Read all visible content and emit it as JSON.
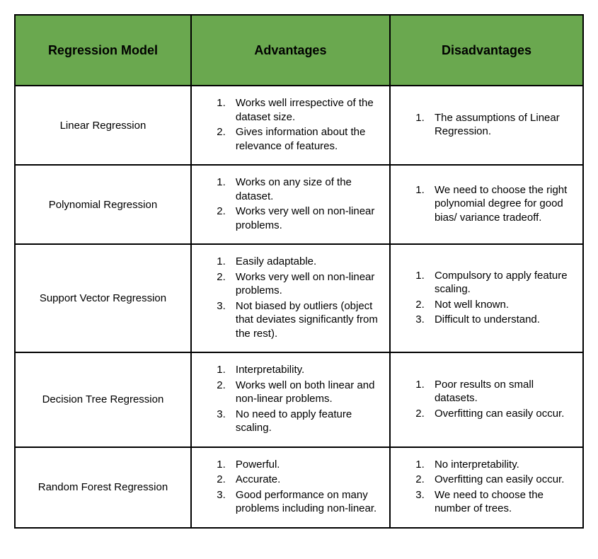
{
  "table": {
    "type": "table",
    "header_background": "#6aa84f",
    "header_text_color": "#000000",
    "border_color": "#000000",
    "border_width": 2,
    "font_family": "Arial",
    "header_fontsize": 18,
    "body_fontsize": 15,
    "columns": [
      {
        "key": "model",
        "label": "Regression Model",
        "width_pct": 31,
        "align": "center"
      },
      {
        "key": "advantages",
        "label": "Advantages",
        "width_pct": 35,
        "align": "left"
      },
      {
        "key": "disadvantages",
        "label": "Disadvantages",
        "width_pct": 34,
        "align": "left"
      }
    ],
    "rows": [
      {
        "model": "Linear Regression",
        "advantages": [
          "Works well irrespective of the dataset size.",
          "Gives information about the relevance of features."
        ],
        "disadvantages": [
          "The assumptions of Linear Regression."
        ]
      },
      {
        "model": "Polynomial Regression",
        "advantages": [
          "Works on any size of the dataset.",
          "Works very well on non-linear problems."
        ],
        "disadvantages": [
          "We need to choose the right polynomial degree for good bias/ variance tradeoff."
        ]
      },
      {
        "model": "Support Vector Regression",
        "advantages": [
          "Easily adaptable.",
          "Works very well on non-linear problems.",
          "Not biased by outliers (object that deviates significantly from the rest)."
        ],
        "disadvantages": [
          "Compulsory to apply feature scaling.",
          "Not well known.",
          "Difficult to understand."
        ]
      },
      {
        "model": "Decision Tree Regression",
        "advantages": [
          "Interpretability.",
          "Works well on both linear and non-linear problems.",
          "No need to apply feature scaling."
        ],
        "disadvantages": [
          "Poor results on small datasets.",
          "Overfitting can easily occur."
        ]
      },
      {
        "model": "Random Forest Regression",
        "advantages": [
          "Powerful.",
          "Accurate.",
          "Good performance on many problems including non-linear."
        ],
        "disadvantages": [
          "No interpretability.",
          "Overfitting can easily occur.",
          "We need to choose the number of trees."
        ]
      }
    ]
  }
}
